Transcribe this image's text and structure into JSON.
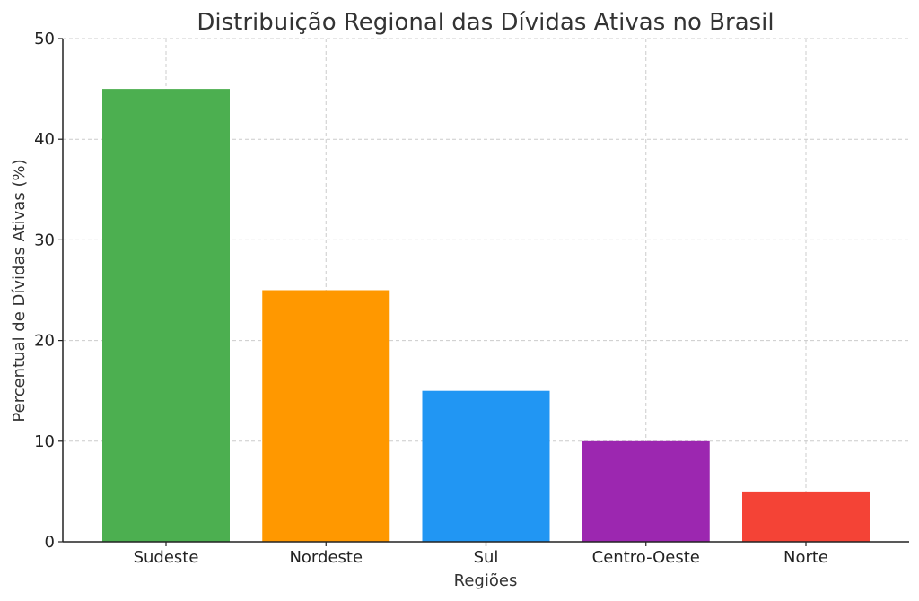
{
  "chart_data": {
    "type": "bar",
    "title": "Distribuição Regional das Dívidas Ativas no Brasil",
    "xlabel": "Regiões",
    "ylabel": "Percentual de Dívidas Ativas (%)",
    "categories": [
      "Sudeste",
      "Nordeste",
      "Sul",
      "Centro-Oeste",
      "Norte"
    ],
    "values": [
      45,
      25,
      15,
      10,
      5
    ],
    "colors": [
      "#4caf50",
      "#ff9800",
      "#2196f3",
      "#9c27b0",
      "#f44336"
    ],
    "ylim": [
      0,
      50
    ],
    "yticks": [
      0,
      10,
      20,
      30,
      40,
      50
    ],
    "grid": true
  }
}
